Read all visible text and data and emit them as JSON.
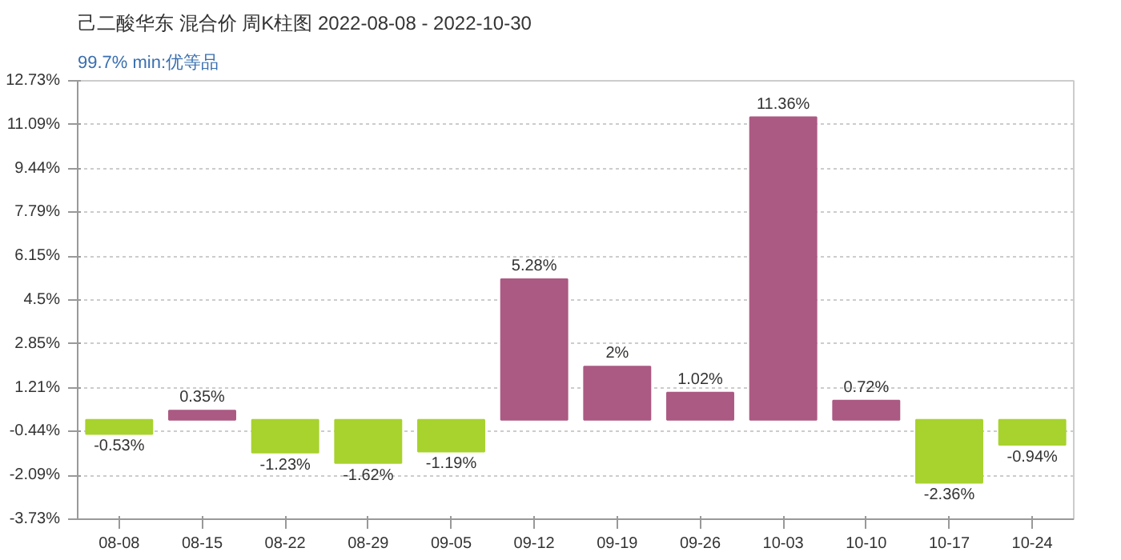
{
  "chart_data": {
    "type": "bar",
    "title": "己二酸华东 混合价 周K柱图 2022-08-08 - 2022-10-30",
    "subtitle": "99.7% min:优等品",
    "categories": [
      "08-08",
      "08-15",
      "08-22",
      "08-29",
      "09-05",
      "09-12",
      "09-19",
      "09-26",
      "10-03",
      "10-10",
      "10-17",
      "10-24"
    ],
    "values": [
      -0.53,
      0.35,
      -1.23,
      -1.62,
      -1.19,
      5.28,
      2,
      1.02,
      11.36,
      0.72,
      -2.36,
      -0.94
    ],
    "colors": [
      "#a8d22e",
      "#ab5a83",
      "#a8d22e",
      "#a8d22e",
      "#a8d22e",
      "#ab5a83",
      "#ab5a83",
      "#ab5a83",
      "#ab5a83",
      "#ab5a83",
      "#a8d22e",
      "#a8d22e"
    ],
    "value_labels": [
      "-0.53%",
      "0.35%",
      "-1.23%",
      "-1.62%",
      "-1.19%",
      "5.28%",
      "2%",
      "1.02%",
      "11.36%",
      "0.72%",
      "-2.36%",
      "-0.94%"
    ],
    "ylim": [
      -3.73,
      12.73
    ],
    "yticks": [
      {
        "value": -3.73,
        "label": "-3.73%"
      },
      {
        "value": -2.09,
        "label": "-2.09%"
      },
      {
        "value": -0.44,
        "label": "-0.44%"
      },
      {
        "value": 1.21,
        "label": "1.21%"
      },
      {
        "value": 2.85,
        "label": "2.85%"
      },
      {
        "value": 4.5,
        "label": "4.5%"
      },
      {
        "value": 6.15,
        "label": "6.15%"
      },
      {
        "value": 7.79,
        "label": "7.79%"
      },
      {
        "value": 9.44,
        "label": "9.44%"
      },
      {
        "value": 11.09,
        "label": "11.09%"
      },
      {
        "value": 12.73,
        "label": "12.73%"
      }
    ],
    "grid": "y"
  }
}
